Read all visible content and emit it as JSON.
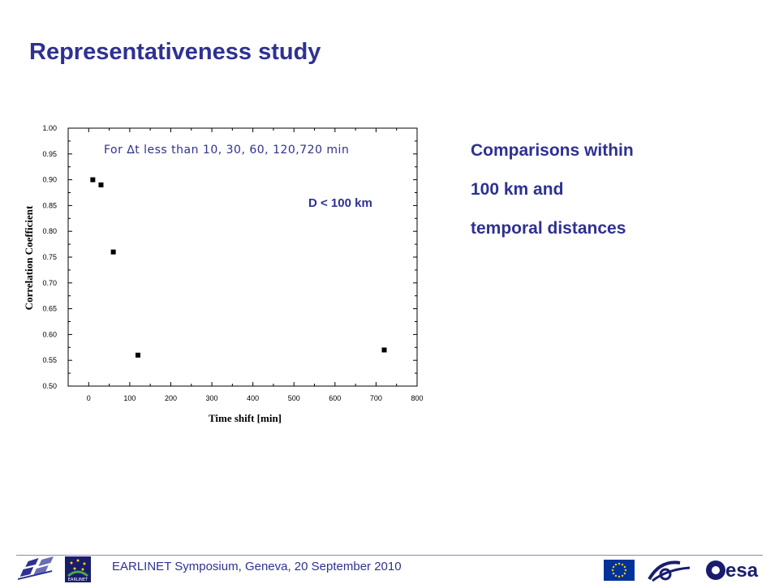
{
  "slide": {
    "title": "Representativeness study",
    "bullets": [
      "Comparisons within",
      "100 km and",
      "temporal distances"
    ],
    "footer": "EARLINET Symposium, Geneva, 20 September 2010",
    "logos": {
      "ift": "IfT",
      "earlinet": "EARLINET",
      "eu": "eu-flag-icon",
      "sixth_framework": "sixth-framework-logo",
      "esa": "esa"
    }
  },
  "chart_data": {
    "type": "scatter",
    "title": "",
    "xlabel": "Time shift [min]",
    "ylabel": "Correlation Coefficient",
    "xlim": [
      -50,
      800
    ],
    "ylim": [
      0.5,
      1.0
    ],
    "x_ticks": [
      0,
      100,
      200,
      300,
      400,
      500,
      600,
      700,
      800
    ],
    "y_ticks": [
      "0.50",
      "0.55",
      "0.60",
      "0.65",
      "0.70",
      "0.75",
      "0.80",
      "0.85",
      "0.90",
      "0.95",
      "1.00"
    ],
    "annotations": [
      "For ∆t less than 10, 30, 60, 120,720 min",
      "D < 100 km"
    ],
    "annotation_colors": [
      "#2e3192",
      "#2e3192"
    ],
    "grid": false,
    "marker_color": "#000000",
    "x": [
      10,
      30,
      60,
      120,
      720
    ],
    "y": [
      0.9,
      0.89,
      0.76,
      0.56,
      0.57
    ]
  }
}
